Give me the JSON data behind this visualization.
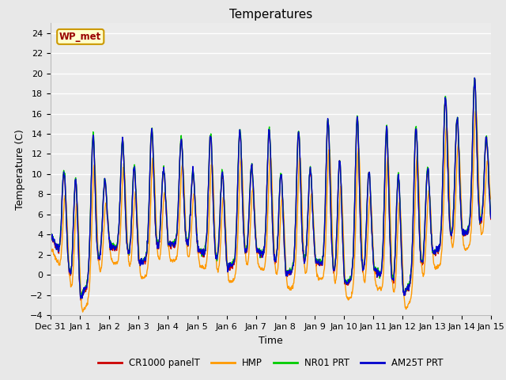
{
  "title": "Temperatures",
  "ylabel": "Temperature (C)",
  "xlabel": "Time",
  "ylim": [
    -4,
    25
  ],
  "yticks": [
    -4,
    -2,
    0,
    2,
    4,
    6,
    8,
    10,
    12,
    14,
    16,
    18,
    20,
    22,
    24
  ],
  "xtick_labels": [
    "Dec 31",
    "Jan 1",
    "Jan 2",
    "Jan 3",
    "Jan 4",
    "Jan 5",
    "Jan 6",
    "Jan 7",
    "Jan 8",
    "Jan 9",
    "Jan 10",
    "Jan 11",
    "Jan 12",
    "Jan 13",
    "Jan 14",
    "Jan 15"
  ],
  "series_labels": [
    "CR1000 panelT",
    "HMP",
    "NR01 PRT",
    "AM25T PRT"
  ],
  "series_colors": [
    "#cc0000",
    "#ff9900",
    "#00cc00",
    "#0000cc"
  ],
  "series_linewidths": [
    1.0,
    1.0,
    1.0,
    1.0
  ],
  "legend_text": "WP_met",
  "legend_text_color": "#990000",
  "legend_bg_color": "#ffffcc",
  "legend_border_color": "#cc9900",
  "bg_color": "#e8e8e8",
  "plot_bg_color": "#ebebeb",
  "grid_color": "#ffffff",
  "grid_linewidth": 1.0,
  "title_fontsize": 11,
  "axis_fontsize": 9,
  "tick_fontsize": 8
}
